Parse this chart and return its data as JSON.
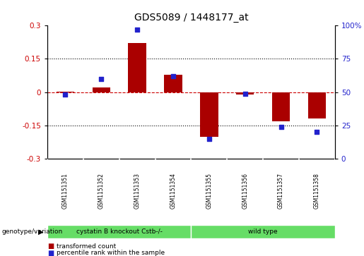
{
  "title": "GDS5089 / 1448177_at",
  "samples": [
    "GSM1151351",
    "GSM1151352",
    "GSM1151353",
    "GSM1151354",
    "GSM1151355",
    "GSM1151356",
    "GSM1151357",
    "GSM1151358"
  ],
  "bar_values": [
    0.003,
    0.022,
    0.22,
    0.08,
    -0.2,
    -0.012,
    -0.13,
    -0.12
  ],
  "scatter_values_pct": [
    48,
    60,
    97,
    62,
    15,
    49,
    24,
    20
  ],
  "ylim_left": [
    -0.3,
    0.3
  ],
  "ylim_right": [
    0,
    100
  ],
  "yticks_left": [
    -0.3,
    -0.15,
    0.0,
    0.15,
    0.3
  ],
  "yticks_right": [
    0,
    25,
    50,
    75,
    100
  ],
  "ytick_labels_left": [
    "-0.3",
    "-0.15",
    "0",
    "0.15",
    "0.3"
  ],
  "ytick_labels_right": [
    "0",
    "25",
    "50",
    "75",
    "100%"
  ],
  "bar_color": "#aa0000",
  "scatter_color": "#2222cc",
  "hline_color": "#cc0000",
  "grid_color": "#000000",
  "group1_label": "cystatin B knockout Cstb-/-",
  "group2_label": "wild type",
  "group1_count": 4,
  "group2_count": 4,
  "genotype_label": "genotype/variation",
  "legend1_label": "transformed count",
  "legend2_label": "percentile rank within the sample",
  "group_color": "#66dd66",
  "sample_box_color": "#cccccc",
  "bg_color": "#ffffff",
  "tick_label_color_left": "#cc0000",
  "tick_label_color_right": "#2222cc",
  "bar_width": 0.5
}
